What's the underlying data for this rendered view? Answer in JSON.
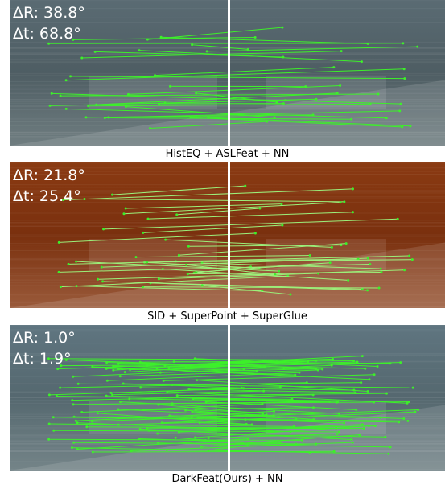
{
  "panels": [
    {
      "rotation_error": "ΔR: 38.8°",
      "translation_error": "Δt: 68.8°",
      "caption": "HistEQ + ASLFeat + NN"
    },
    {
      "rotation_error": "ΔR: 21.8°",
      "translation_error": "Δt: 25.4°",
      "caption": "SID + SuperPoint + SuperGlue"
    },
    {
      "rotation_error": "ΔR: 1.0°",
      "translation_error": "Δt: 1.9°",
      "caption": "DarkFeat(Ours) + NN"
    }
  ]
}
